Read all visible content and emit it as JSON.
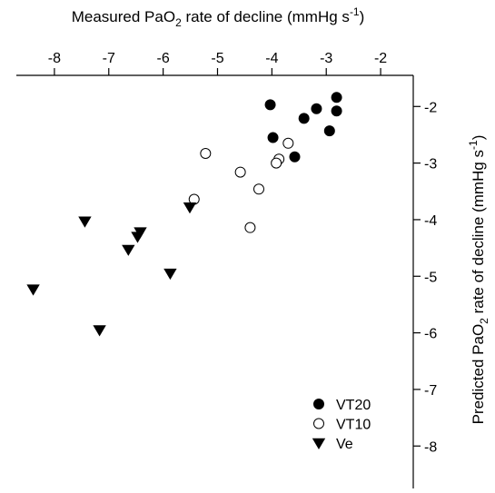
{
  "chart_data": {
    "type": "scatter",
    "title": "",
    "xlabel": {
      "prefix": "Measured PaO",
      "subscript": "2",
      "middle": " rate of decline (mmHg s",
      "superscript": "-1",
      "suffix": ")"
    },
    "ylabel": {
      "prefix": "Predicted PaO",
      "subscript": "2",
      "middle": " rate of decline (mmHg s",
      "superscript": "-1",
      "suffix": ")"
    },
    "x_axis_position": "top",
    "y_axis_position": "right",
    "xlim": [
      -8.7,
      -1.4
    ],
    "ylim": [
      -8.75,
      -1.45
    ],
    "x_ticks": [
      -8,
      -7,
      -6,
      -5,
      -4,
      -3,
      -2
    ],
    "y_ticks": [
      -2,
      -3,
      -4,
      -5,
      -6,
      -7,
      -8
    ],
    "x_tick_labels": [
      "-8",
      "-7",
      "-6",
      "-5",
      "-4",
      "-3",
      "-2"
    ],
    "y_tick_labels": [
      "-2",
      "-3",
      "-4",
      "-5",
      "-6",
      "-7",
      "-8"
    ],
    "grid": false,
    "legend_position": "bottom-right",
    "series": [
      {
        "name": "VT20",
        "marker": "filled-circle",
        "color": "#000000",
        "points": [
          {
            "x": -4.03,
            "y": -1.97
          },
          {
            "x": -2.81,
            "y": -1.84
          },
          {
            "x": -2.81,
            "y": -2.08
          },
          {
            "x": -3.18,
            "y": -2.04
          },
          {
            "x": -3.41,
            "y": -2.21
          },
          {
            "x": -2.94,
            "y": -2.43
          },
          {
            "x": -3.98,
            "y": -2.55
          },
          {
            "x": -3.58,
            "y": -2.89
          }
        ]
      },
      {
        "name": "VT10",
        "marker": "open-circle",
        "color": "#000000",
        "points": [
          {
            "x": -5.22,
            "y": -2.83
          },
          {
            "x": -3.7,
            "y": -2.65
          },
          {
            "x": -3.87,
            "y": -2.93
          },
          {
            "x": -3.92,
            "y": -3.0
          },
          {
            "x": -4.58,
            "y": -3.16
          },
          {
            "x": -4.24,
            "y": -3.46
          },
          {
            "x": -5.43,
            "y": -3.64
          },
          {
            "x": -4.4,
            "y": -4.14
          }
        ]
      },
      {
        "name": "Ve",
        "marker": "filled-triangle-down",
        "color": "#000000",
        "points": [
          {
            "x": -5.51,
            "y": -3.78
          },
          {
            "x": -7.44,
            "y": -4.03
          },
          {
            "x": -6.42,
            "y": -4.22
          },
          {
            "x": -6.47,
            "y": -4.3
          },
          {
            "x": -6.64,
            "y": -4.53
          },
          {
            "x": -5.87,
            "y": -4.95
          },
          {
            "x": -8.39,
            "y": -5.23
          },
          {
            "x": -7.17,
            "y": -5.95
          }
        ]
      }
    ]
  }
}
